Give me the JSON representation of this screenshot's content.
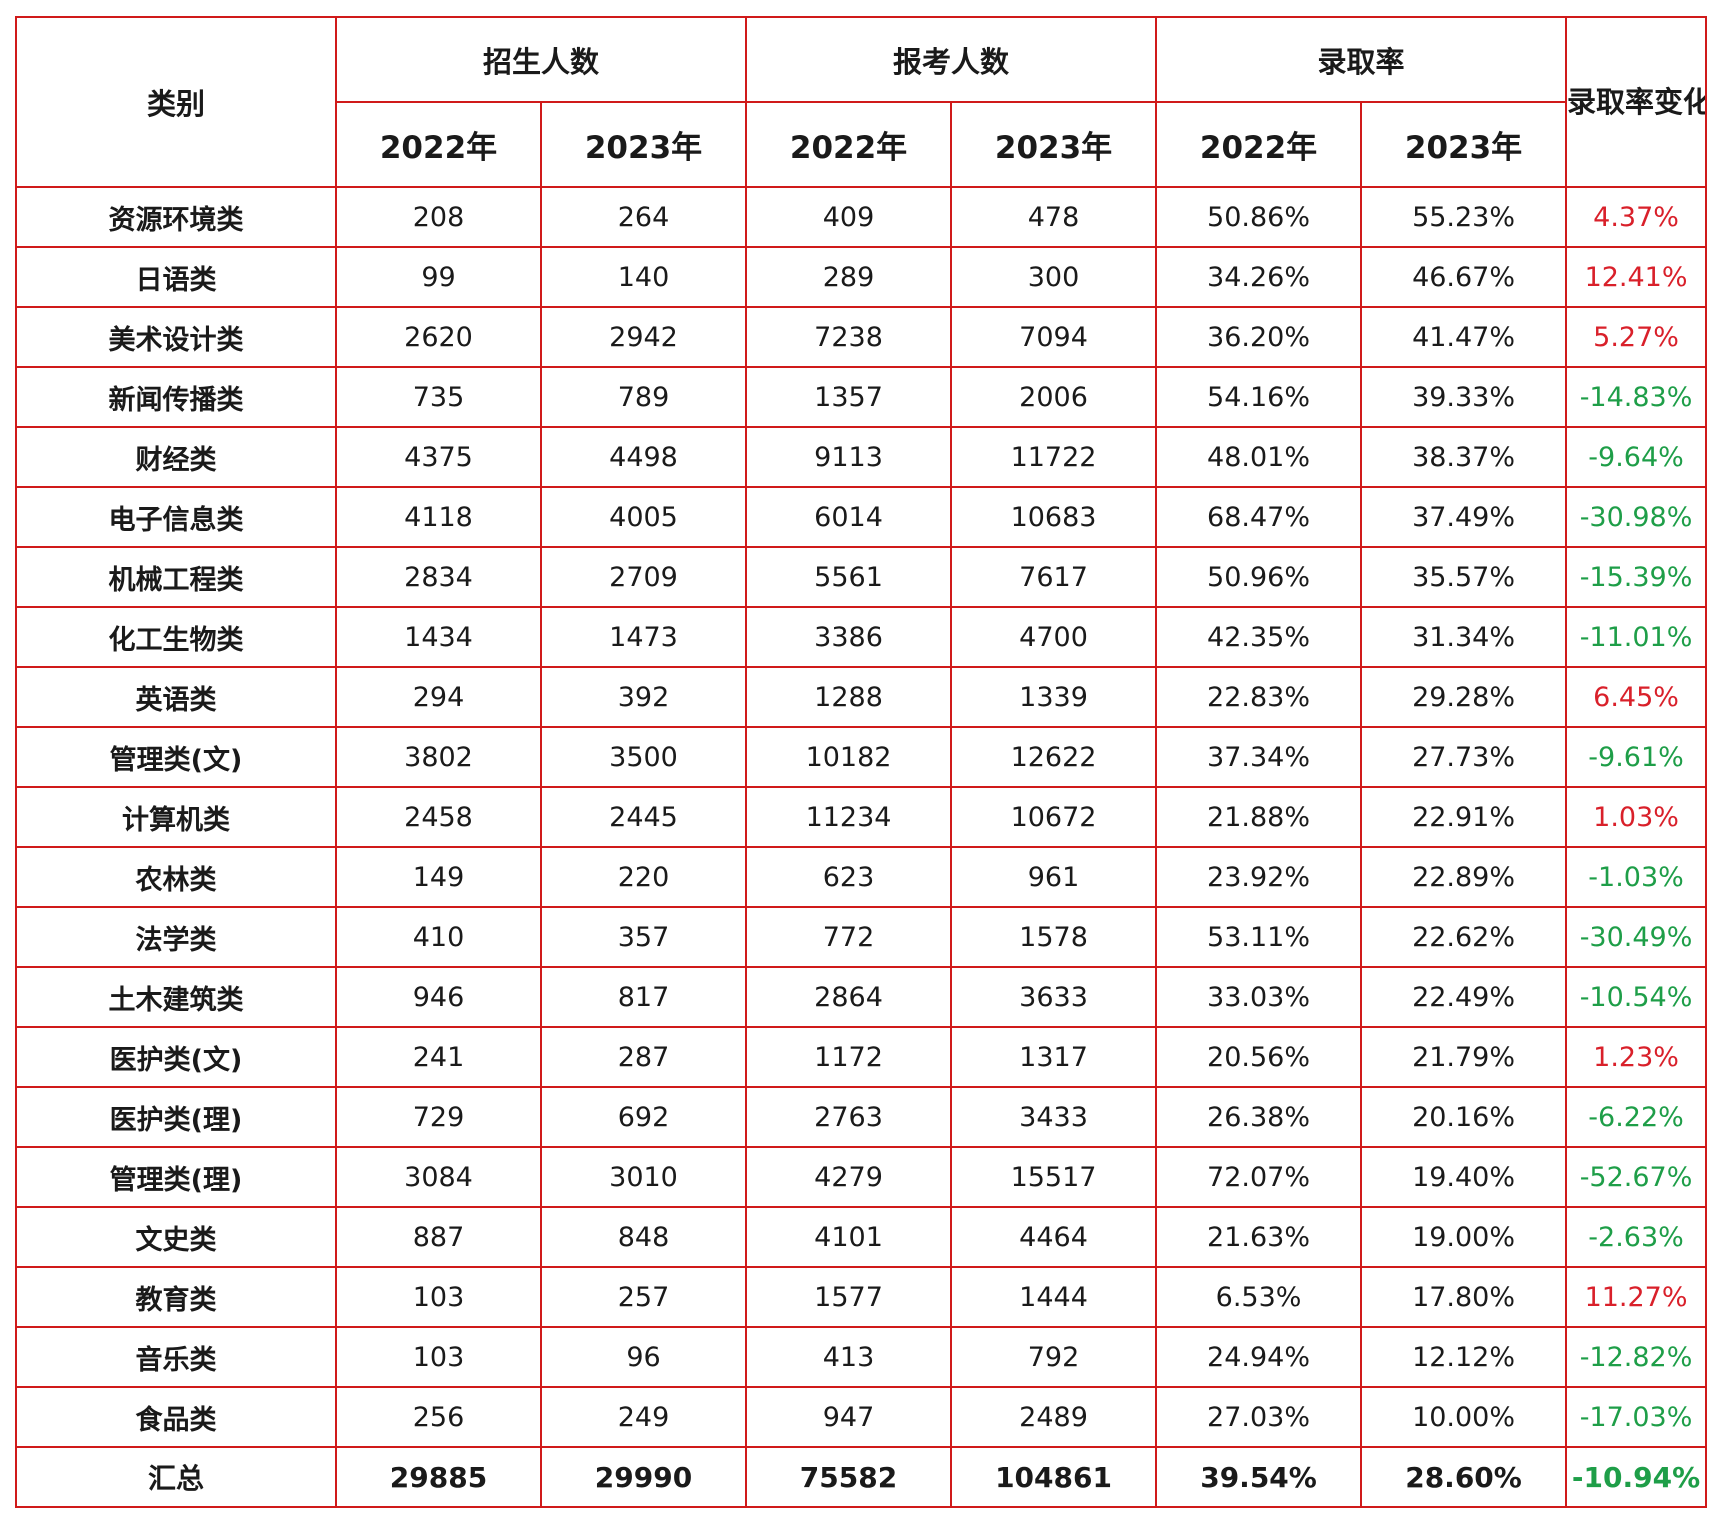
{
  "headers": {
    "category": "类别",
    "enrollment": "招生人数",
    "applicants": "报考人数",
    "rate": "录取率",
    "change": "录取率变化",
    "year_2022": "2022年",
    "year_2023": "2023年"
  },
  "colors": {
    "border": "#d01a1a",
    "positive": "#d9202a",
    "negative": "#1e9e48"
  },
  "rows": [
    {
      "category": "资源环境类",
      "enroll_2022": "208",
      "enroll_2023": "264",
      "apply_2022": "409",
      "apply_2023": "478",
      "rate_2022": "50.86%",
      "rate_2023": "55.23%",
      "change": "4.37%",
      "trend": "pos"
    },
    {
      "category": "日语类",
      "enroll_2022": "99",
      "enroll_2023": "140",
      "apply_2022": "289",
      "apply_2023": "300",
      "rate_2022": "34.26%",
      "rate_2023": "46.67%",
      "change": "12.41%",
      "trend": "pos"
    },
    {
      "category": "美术设计类",
      "enroll_2022": "2620",
      "enroll_2023": "2942",
      "apply_2022": "7238",
      "apply_2023": "7094",
      "rate_2022": "36.20%",
      "rate_2023": "41.47%",
      "change": "5.27%",
      "trend": "pos"
    },
    {
      "category": "新闻传播类",
      "enroll_2022": "735",
      "enroll_2023": "789",
      "apply_2022": "1357",
      "apply_2023": "2006",
      "rate_2022": "54.16%",
      "rate_2023": "39.33%",
      "change": "-14.83%",
      "trend": "neg"
    },
    {
      "category": "财经类",
      "enroll_2022": "4375",
      "enroll_2023": "4498",
      "apply_2022": "9113",
      "apply_2023": "11722",
      "rate_2022": "48.01%",
      "rate_2023": "38.37%",
      "change": "-9.64%",
      "trend": "neg"
    },
    {
      "category": "电子信息类",
      "enroll_2022": "4118",
      "enroll_2023": "4005",
      "apply_2022": "6014",
      "apply_2023": "10683",
      "rate_2022": "68.47%",
      "rate_2023": "37.49%",
      "change": "-30.98%",
      "trend": "neg"
    },
    {
      "category": "机械工程类",
      "enroll_2022": "2834",
      "enroll_2023": "2709",
      "apply_2022": "5561",
      "apply_2023": "7617",
      "rate_2022": "50.96%",
      "rate_2023": "35.57%",
      "change": "-15.39%",
      "trend": "neg"
    },
    {
      "category": "化工生物类",
      "enroll_2022": "1434",
      "enroll_2023": "1473",
      "apply_2022": "3386",
      "apply_2023": "4700",
      "rate_2022": "42.35%",
      "rate_2023": "31.34%",
      "change": "-11.01%",
      "trend": "neg"
    },
    {
      "category": "英语类",
      "enroll_2022": "294",
      "enroll_2023": "392",
      "apply_2022": "1288",
      "apply_2023": "1339",
      "rate_2022": "22.83%",
      "rate_2023": "29.28%",
      "change": "6.45%",
      "trend": "pos"
    },
    {
      "category": "管理类(文)",
      "enroll_2022": "3802",
      "enroll_2023": "3500",
      "apply_2022": "10182",
      "apply_2023": "12622",
      "rate_2022": "37.34%",
      "rate_2023": "27.73%",
      "change": "-9.61%",
      "trend": "neg"
    },
    {
      "category": "计算机类",
      "enroll_2022": "2458",
      "enroll_2023": "2445",
      "apply_2022": "11234",
      "apply_2023": "10672",
      "rate_2022": "21.88%",
      "rate_2023": "22.91%",
      "change": "1.03%",
      "trend": "pos"
    },
    {
      "category": "农林类",
      "enroll_2022": "149",
      "enroll_2023": "220",
      "apply_2022": "623",
      "apply_2023": "961",
      "rate_2022": "23.92%",
      "rate_2023": "22.89%",
      "change": "-1.03%",
      "trend": "neg"
    },
    {
      "category": "法学类",
      "enroll_2022": "410",
      "enroll_2023": "357",
      "apply_2022": "772",
      "apply_2023": "1578",
      "rate_2022": "53.11%",
      "rate_2023": "22.62%",
      "change": "-30.49%",
      "trend": "neg"
    },
    {
      "category": "土木建筑类",
      "enroll_2022": "946",
      "enroll_2023": "817",
      "apply_2022": "2864",
      "apply_2023": "3633",
      "rate_2022": "33.03%",
      "rate_2023": "22.49%",
      "change": "-10.54%",
      "trend": "neg"
    },
    {
      "category": "医护类(文)",
      "enroll_2022": "241",
      "enroll_2023": "287",
      "apply_2022": "1172",
      "apply_2023": "1317",
      "rate_2022": "20.56%",
      "rate_2023": "21.79%",
      "change": "1.23%",
      "trend": "pos"
    },
    {
      "category": "医护类(理)",
      "enroll_2022": "729",
      "enroll_2023": "692",
      "apply_2022": "2763",
      "apply_2023": "3433",
      "rate_2022": "26.38%",
      "rate_2023": "20.16%",
      "change": "-6.22%",
      "trend": "neg"
    },
    {
      "category": "管理类(理)",
      "enroll_2022": "3084",
      "enroll_2023": "3010",
      "apply_2022": "4279",
      "apply_2023": "15517",
      "rate_2022": "72.07%",
      "rate_2023": "19.40%",
      "change": "-52.67%",
      "trend": "neg"
    },
    {
      "category": "文史类",
      "enroll_2022": "887",
      "enroll_2023": "848",
      "apply_2022": "4101",
      "apply_2023": "4464",
      "rate_2022": "21.63%",
      "rate_2023": "19.00%",
      "change": "-2.63%",
      "trend": "neg"
    },
    {
      "category": "教育类",
      "enroll_2022": "103",
      "enroll_2023": "257",
      "apply_2022": "1577",
      "apply_2023": "1444",
      "rate_2022": "6.53%",
      "rate_2023": "17.80%",
      "change": "11.27%",
      "trend": "pos"
    },
    {
      "category": "音乐类",
      "enroll_2022": "103",
      "enroll_2023": "96",
      "apply_2022": "413",
      "apply_2023": "792",
      "rate_2022": "24.94%",
      "rate_2023": "12.12%",
      "change": "-12.82%",
      "trend": "neg"
    },
    {
      "category": "食品类",
      "enroll_2022": "256",
      "enroll_2023": "249",
      "apply_2022": "947",
      "apply_2023": "2489",
      "rate_2022": "27.03%",
      "rate_2023": "10.00%",
      "change": "-17.03%",
      "trend": "neg"
    }
  ],
  "total": {
    "category": "汇总",
    "enroll_2022": "29885",
    "enroll_2023": "29990",
    "apply_2022": "75582",
    "apply_2023": "104861",
    "rate_2022": "39.54%",
    "rate_2023": "28.60%",
    "change": "-10.94%",
    "trend": "neg"
  }
}
